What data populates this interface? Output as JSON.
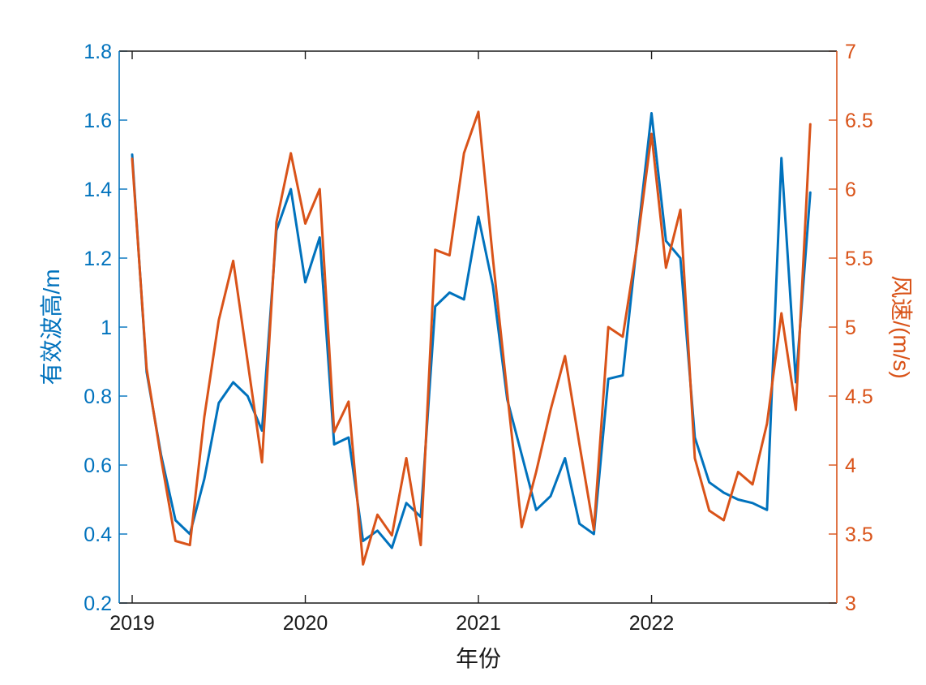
{
  "chart_data": {
    "type": "line",
    "title": "",
    "xlabel": "年份",
    "ylabel_left": "有效波高/m",
    "ylabel_right": "风速/(m/s)",
    "grid": false,
    "legend_position": "none",
    "x_tick_labels": [
      "2019",
      "2020",
      "2021",
      "2022"
    ],
    "x_tick_values": [
      2019,
      2020,
      2021,
      2022
    ],
    "xlim": [
      2018.925,
      2023.07
    ],
    "ylim_left": [
      0.2,
      1.8
    ],
    "ytick_labels_left": [
      "0.2",
      "0.4",
      "0.6",
      "0.8",
      "1",
      "1.2",
      "1.4",
      "1.6",
      "1.8"
    ],
    "ytick_values_left": [
      0.2,
      0.4,
      0.6,
      0.8,
      1.0,
      1.2,
      1.4,
      1.6,
      1.8
    ],
    "ylim_right": [
      3,
      7
    ],
    "ytick_labels_right": [
      "3",
      "3.5",
      "4",
      "4.5",
      "5",
      "5.5",
      "6",
      "6.5",
      "7"
    ],
    "ytick_values_right": [
      3,
      3.5,
      4,
      4.5,
      5,
      5.5,
      6,
      6.5,
      7
    ],
    "colors": {
      "wave_height_line": "#0072BD",
      "wind_speed_line": "#D95319",
      "axis_box": "#1a1a1a"
    },
    "x_months": [
      "2019-01",
      "2019-02",
      "2019-03",
      "2019-04",
      "2019-05",
      "2019-06",
      "2019-07",
      "2019-08",
      "2019-09",
      "2019-10",
      "2019-11",
      "2019-12",
      "2020-01",
      "2020-02",
      "2020-03",
      "2020-04",
      "2020-05",
      "2020-06",
      "2020-07",
      "2020-08",
      "2020-09",
      "2020-10",
      "2020-11",
      "2020-12",
      "2021-01",
      "2021-02",
      "2021-03",
      "2021-04",
      "2021-05",
      "2021-06",
      "2021-07",
      "2021-08",
      "2021-09",
      "2021-10",
      "2021-11",
      "2021-12",
      "2022-01",
      "2022-02",
      "2022-03",
      "2022-04",
      "2022-05",
      "2022-06",
      "2022-07",
      "2022-08",
      "2022-09",
      "2022-10",
      "2022-11",
      "2022-12"
    ],
    "series": [
      {
        "name": "有效波高",
        "axis": "left",
        "unit": "m",
        "color": "#0072BD",
        "values": [
          1.5,
          0.87,
          0.63,
          0.44,
          0.4,
          0.56,
          0.78,
          0.84,
          0.8,
          0.7,
          1.28,
          1.4,
          1.13,
          1.26,
          0.66,
          0.68,
          0.38,
          0.41,
          0.36,
          0.49,
          0.45,
          1.06,
          1.1,
          1.08,
          1.32,
          1.12,
          0.79,
          0.63,
          0.47,
          0.51,
          0.62,
          0.43,
          0.4,
          0.85,
          0.86,
          1.25,
          1.62,
          1.25,
          1.2,
          0.68,
          0.55,
          0.52,
          0.5,
          0.49,
          0.47,
          1.49,
          0.84,
          1.39
        ]
      },
      {
        "name": "风速",
        "axis": "right",
        "unit": "m/s",
        "color": "#D95319",
        "values": [
          6.22,
          4.7,
          4.05,
          3.45,
          3.42,
          4.35,
          5.05,
          5.48,
          4.75,
          4.02,
          5.76,
          6.26,
          5.75,
          6.0,
          4.24,
          4.46,
          3.28,
          3.64,
          3.49,
          4.05,
          3.42,
          5.56,
          5.52,
          6.26,
          6.56,
          5.5,
          4.52,
          3.55,
          3.95,
          4.4,
          4.79,
          4.15,
          3.53,
          5.0,
          4.93,
          5.6,
          6.4,
          5.43,
          5.85,
          4.05,
          3.67,
          3.6,
          3.95,
          3.86,
          4.3,
          5.1,
          4.4,
          6.47
        ]
      }
    ]
  }
}
